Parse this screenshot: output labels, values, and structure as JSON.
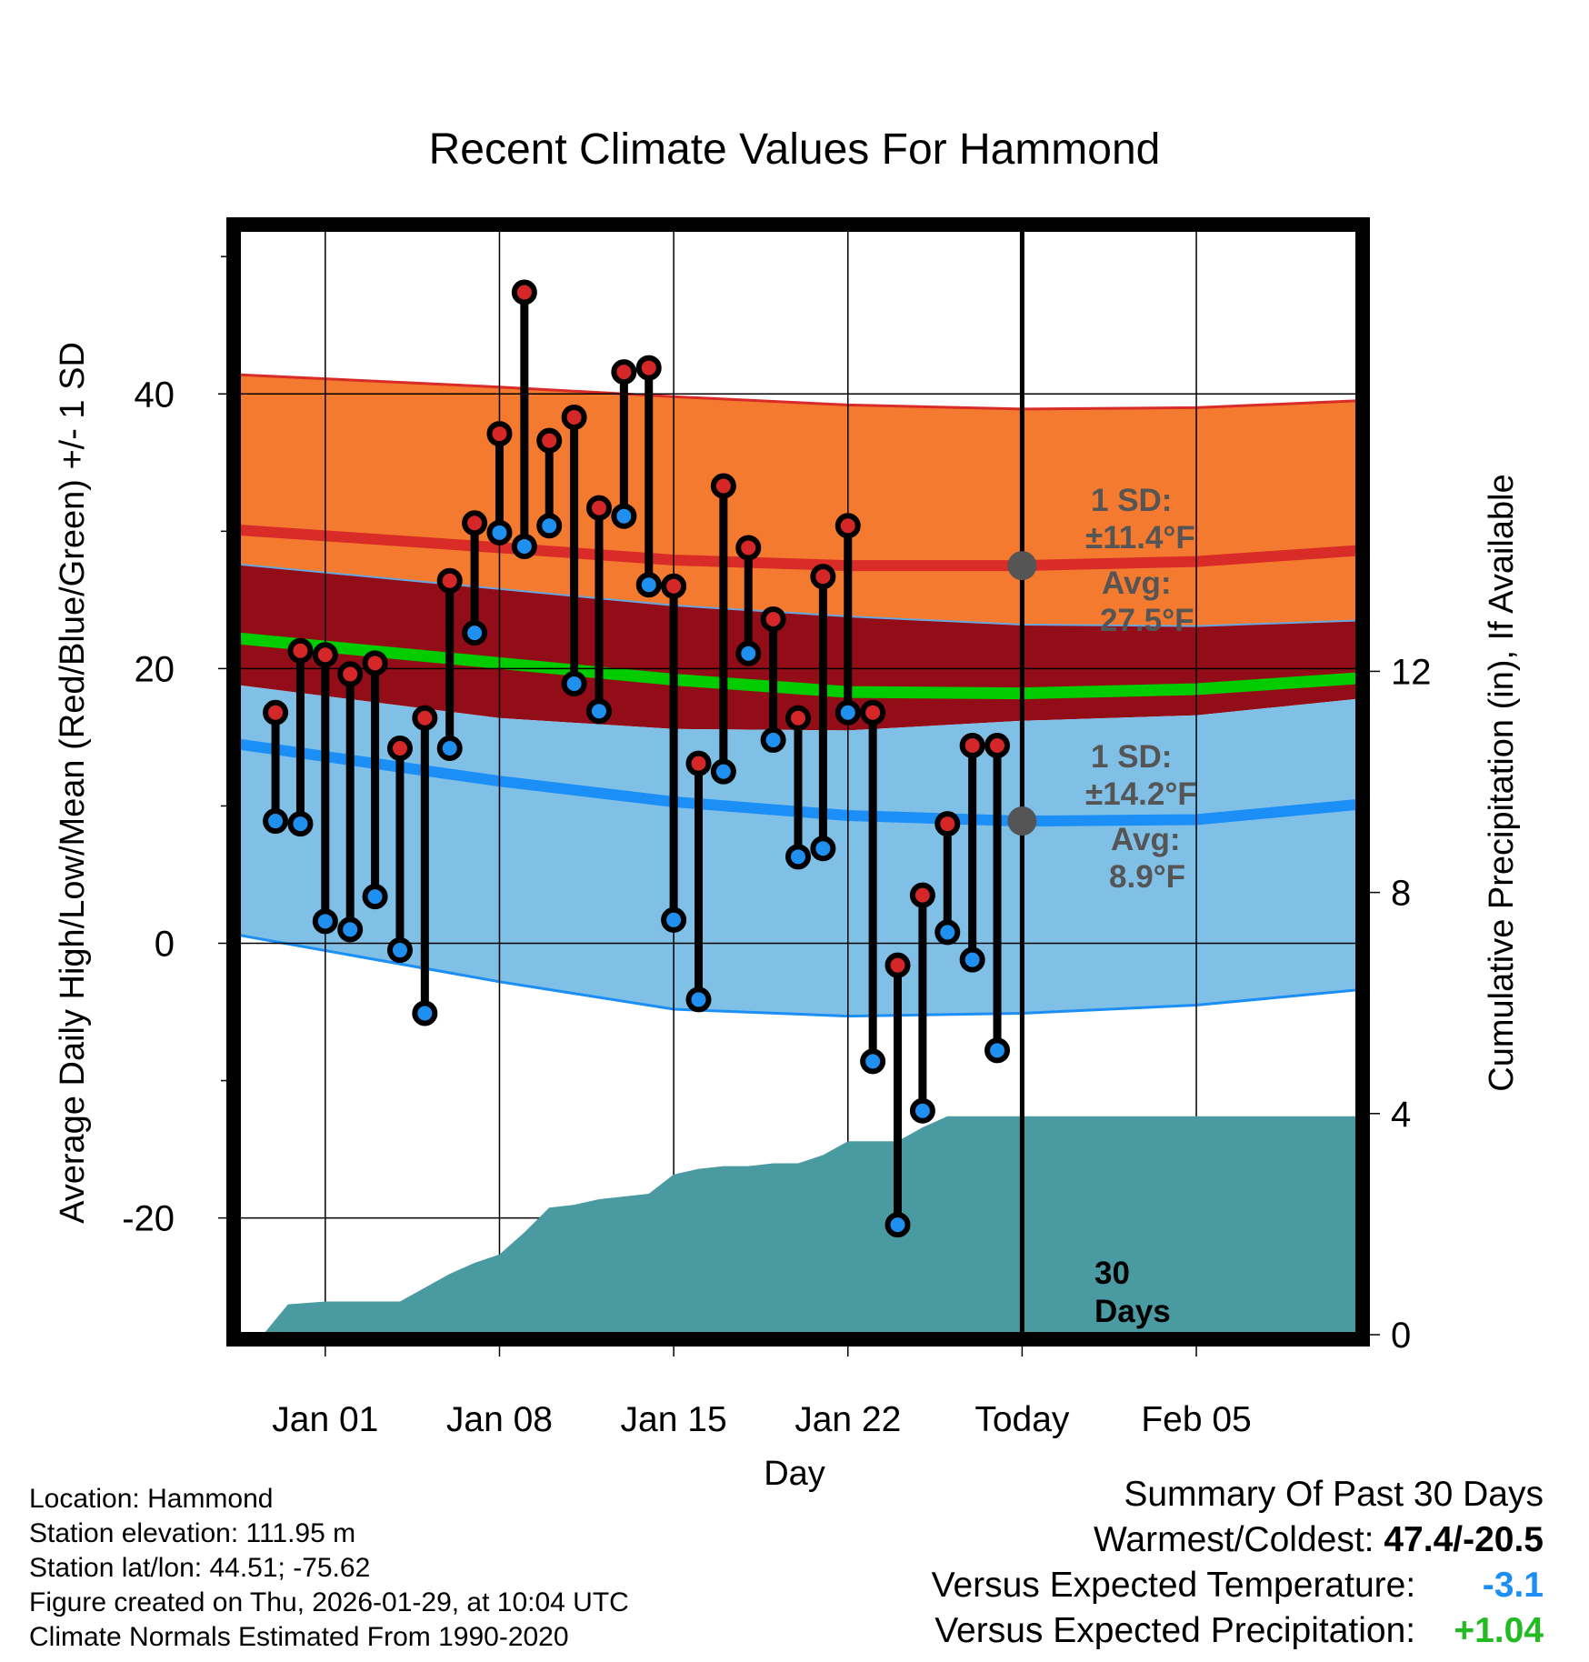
{
  "chart_data": {
    "type": "line",
    "title": "Recent Climate Values For Hammond",
    "xlabel": "Day",
    "ylabel_left": "Average Daily High/Low/Mean (Red/Blue/Green) +/- 1 SD",
    "ylabel_right": "Cumulative Precipitation (in), If Available",
    "ylim": [
      -28.5,
      52
    ],
    "y2lim": [
      0,
      20
    ],
    "xlim": [
      -3.5,
      41.5
    ],
    "x_ticks": [
      {
        "day": 0,
        "label": "Jan 01"
      },
      {
        "day": 7,
        "label": "Jan 08"
      },
      {
        "day": 14,
        "label": "Jan 15"
      },
      {
        "day": 21,
        "label": "Jan 22"
      },
      {
        "day": 28,
        "label": "Today"
      },
      {
        "day": 35,
        "label": "Feb 05"
      }
    ],
    "y_ticks": [
      "-20",
      "0",
      "20",
      "40"
    ],
    "y_minor": [
      -10,
      10,
      30,
      50
    ],
    "y2_ticks": [
      "0",
      "4",
      "8",
      "12"
    ],
    "today_day": 28,
    "highs": [
      {
        "day": -2,
        "value": 16.8
      },
      {
        "day": -1,
        "value": 21.3
      },
      {
        "day": 0,
        "value": 21.0
      },
      {
        "day": 1,
        "value": 19.6
      },
      {
        "day": 2,
        "value": 20.4
      },
      {
        "day": 3,
        "value": 14.2
      },
      {
        "day": 4,
        "value": 16.4
      },
      {
        "day": 5,
        "value": 26.4
      },
      {
        "day": 6,
        "value": 30.6
      },
      {
        "day": 7,
        "value": 37.1
      },
      {
        "day": 8,
        "value": 47.4
      },
      {
        "day": 9,
        "value": 36.6
      },
      {
        "day": 10,
        "value": 38.3
      },
      {
        "day": 11,
        "value": 31.7
      },
      {
        "day": 12,
        "value": 41.6
      },
      {
        "day": 13,
        "value": 41.9
      },
      {
        "day": 14,
        "value": 26.0
      },
      {
        "day": 15,
        "value": 13.1
      },
      {
        "day": 16,
        "value": 33.3
      },
      {
        "day": 17,
        "value": 28.8
      },
      {
        "day": 18,
        "value": 23.6
      },
      {
        "day": 19,
        "value": 16.4
      },
      {
        "day": 20,
        "value": 26.7
      },
      {
        "day": 21,
        "value": 30.4
      },
      {
        "day": 22,
        "value": 16.8
      },
      {
        "day": 23,
        "value": -1.6
      },
      {
        "day": 24,
        "value": 3.5
      },
      {
        "day": 25,
        "value": 8.7
      },
      {
        "day": 26,
        "value": 14.4
      },
      {
        "day": 27,
        "value": 14.4
      }
    ],
    "lows": [
      {
        "day": -2,
        "value": 8.9
      },
      {
        "day": -1,
        "value": 8.7
      },
      {
        "day": 0,
        "value": 1.6
      },
      {
        "day": 1,
        "value": 1.0
      },
      {
        "day": 2,
        "value": 3.4
      },
      {
        "day": 3,
        "value": -0.5
      },
      {
        "day": 4,
        "value": -5.1
      },
      {
        "day": 5,
        "value": 14.2
      },
      {
        "day": 6,
        "value": 22.6
      },
      {
        "day": 7,
        "value": 29.9
      },
      {
        "day": 8,
        "value": 28.9
      },
      {
        "day": 9,
        "value": 30.4
      },
      {
        "day": 10,
        "value": 18.9
      },
      {
        "day": 11,
        "value": 16.9
      },
      {
        "day": 12,
        "value": 31.1
      },
      {
        "day": 13,
        "value": 26.1
      },
      {
        "day": 14,
        "value": 1.7
      },
      {
        "day": 15,
        "value": -4.1
      },
      {
        "day": 16,
        "value": 12.5
      },
      {
        "day": 17,
        "value": 21.1
      },
      {
        "day": 18,
        "value": 14.8
      },
      {
        "day": 19,
        "value": 6.3
      },
      {
        "day": 20,
        "value": 6.9
      },
      {
        "day": 21,
        "value": 16.8
      },
      {
        "day": 22,
        "value": -8.6
      },
      {
        "day": 23,
        "value": -20.5
      },
      {
        "day": 24,
        "value": -12.2
      },
      {
        "day": 25,
        "value": 0.8
      },
      {
        "day": 26,
        "value": -1.2
      },
      {
        "day": 27,
        "value": -7.8
      }
    ],
    "normal_high": {
      "x": [
        -3.5,
        7,
        14,
        21,
        28,
        35,
        41.5
      ],
      "mean": [
        30.1,
        28.8,
        27.9,
        27.5,
        27.5,
        27.8,
        28.6
      ],
      "upper": [
        41.4,
        40.5,
        39.8,
        39.2,
        38.9,
        39.0,
        39.5
      ],
      "lower": [
        27.6,
        25.8,
        24.6,
        23.8,
        23.2,
        23.1,
        23.5
      ]
    },
    "normal_low": {
      "x": [
        -3.5,
        7,
        14,
        21,
        28,
        35,
        41.5
      ],
      "mean": [
        14.5,
        11.8,
        10.3,
        9.3,
        8.9,
        9.0,
        10.1
      ],
      "upper": [
        18.8,
        16.4,
        15.6,
        15.5,
        16.2,
        16.6,
        17.8
      ],
      "lower": [
        0.6,
        -2.8,
        -4.8,
        -5.3,
        -5.1,
        -4.5,
        -3.4
      ]
    },
    "normal_mean": {
      "x": [
        -3.5,
        7,
        14,
        21,
        28,
        35,
        41.5
      ],
      "values": [
        22.2,
        20.4,
        19.2,
        18.3,
        18.2,
        18.5,
        19.3
      ]
    },
    "precip_cumulative": {
      "x": [
        -2.5,
        -1.5,
        0,
        3,
        5,
        6,
        7,
        8,
        9,
        10,
        11,
        12,
        13,
        14,
        15,
        16,
        17,
        18,
        19,
        20,
        21,
        22,
        23,
        24,
        25,
        26,
        27,
        28,
        41.5
      ],
      "values": [
        0,
        0.55,
        0.6,
        0.6,
        1.1,
        1.3,
        1.45,
        1.85,
        2.3,
        2.35,
        2.45,
        2.5,
        2.55,
        2.9,
        3.0,
        3.05,
        3.05,
        3.1,
        3.1,
        3.25,
        3.5,
        3.5,
        3.5,
        3.75,
        3.95,
        3.95,
        3.95,
        3.95,
        3.95
      ]
    },
    "annotations": {
      "high_sd_label": "1 SD:",
      "high_sd_value": "±11.4°F",
      "high_avg_label": "Avg:",
      "high_avg_value": "27.5°F",
      "low_sd_label": "1 SD:",
      "low_sd_value": "±14.2°F",
      "low_avg_label": "Avg:",
      "low_avg_value": "8.9°F",
      "days_line1": "30",
      "days_line2": "Days",
      "high_avg_marker": 27.5,
      "low_avg_marker": 8.9
    },
    "colors": {
      "high_band": "#f47a2f",
      "high_line": "#d92b27",
      "dark_band": "#920d17",
      "low_band": "#80c0e6",
      "low_line": "#1c8ff7",
      "mean_line": "#00cc00",
      "precip": "#4a9aa2",
      "high_dot": "#d62728",
      "low_dot": "#1f8ff0",
      "annotation": "#555555"
    }
  },
  "footer": {
    "location": "Location: Hammond",
    "elevation": "Station elevation: 111.95 m",
    "latlon": "Station lat/lon: 44.51; -75.62",
    "created": "Figure created on Thu, 2026-01-29, at 10:04 UTC",
    "normals": "Climate Normals Estimated From 1990-2020"
  },
  "summary": {
    "title": "Summary Of Past 30 Days",
    "warm_cold_label": "Warmest/Coldest:",
    "warm_cold_value": "47.4/-20.5",
    "temp_label": "Versus Expected Temperature:",
    "temp_value": "-3.1",
    "precip_label": "Versus Expected Precipitation:",
    "precip_value": "+1.04",
    "temp_color": "#1c8ff7",
    "precip_color": "#22bb22"
  }
}
